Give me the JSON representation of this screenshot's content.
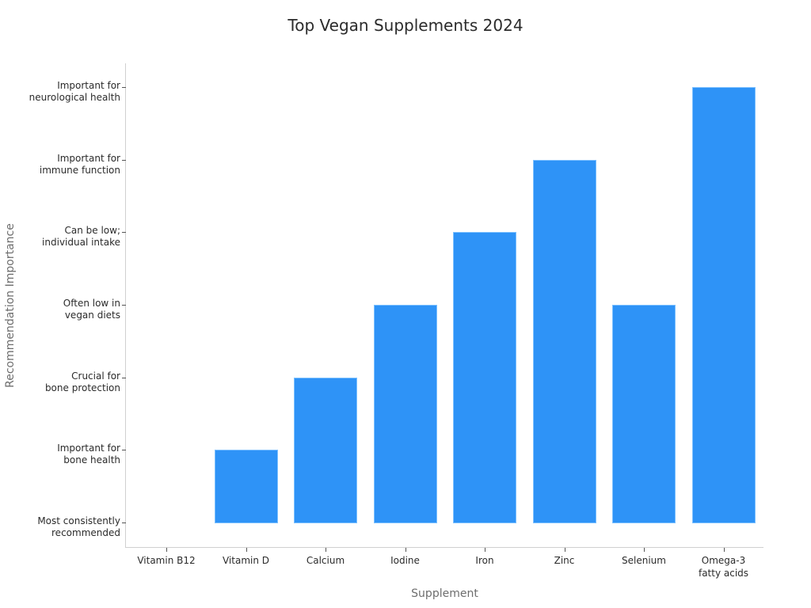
{
  "chart_data": {
    "type": "bar",
    "title": "Top Vegan Supplements 2024",
    "xlabel": "Supplement",
    "ylabel": "Recommendation Importance",
    "categories": [
      "Vitamin B12",
      "Vitamin D",
      "Calcium",
      "Iodine",
      "Iron",
      "Zinc",
      "Selenium",
      "Omega-3\nfatty acids"
    ],
    "values": [
      0,
      1,
      2,
      3,
      4,
      5,
      3,
      6
    ],
    "y_tick_labels": [
      "Most consistently\nrecommended",
      "Important for\nbone health",
      "Crucial for\nbone protection",
      "Often low in\nvegan diets",
      "Can be low;\nindividual intake",
      "Important for\nimmune function",
      "Important for\nneurological health"
    ],
    "ylim": [
      -0.35,
      6.3
    ],
    "grid": false,
    "legend": null,
    "bar_color": "#2e93f7"
  },
  "title": "Top Vegan Supplements 2024",
  "axes": {
    "x_title": "Supplement",
    "y_title": "Recommendation Importance",
    "x_labels": [
      {
        "line1": "Vitamin B12",
        "line2": ""
      },
      {
        "line1": "Vitamin D",
        "line2": ""
      },
      {
        "line1": "Calcium",
        "line2": ""
      },
      {
        "line1": "Iodine",
        "line2": ""
      },
      {
        "line1": "Iron",
        "line2": ""
      },
      {
        "line1": "Zinc",
        "line2": ""
      },
      {
        "line1": "Selenium",
        "line2": ""
      },
      {
        "line1": "Omega-3",
        "line2": "fatty acids"
      }
    ],
    "y_labels": [
      {
        "line1": "Most consistently",
        "line2": "recommended"
      },
      {
        "line1": "Important for",
        "line2": "bone health"
      },
      {
        "line1": "Crucial for",
        "line2": "bone protection"
      },
      {
        "line1": "Often low in",
        "line2": "vegan diets"
      },
      {
        "line1": "Can be low;",
        "line2": "individual intake"
      },
      {
        "line1": "Important for",
        "line2": "immune function"
      },
      {
        "line1": "Important for",
        "line2": "neurological health"
      }
    ]
  }
}
